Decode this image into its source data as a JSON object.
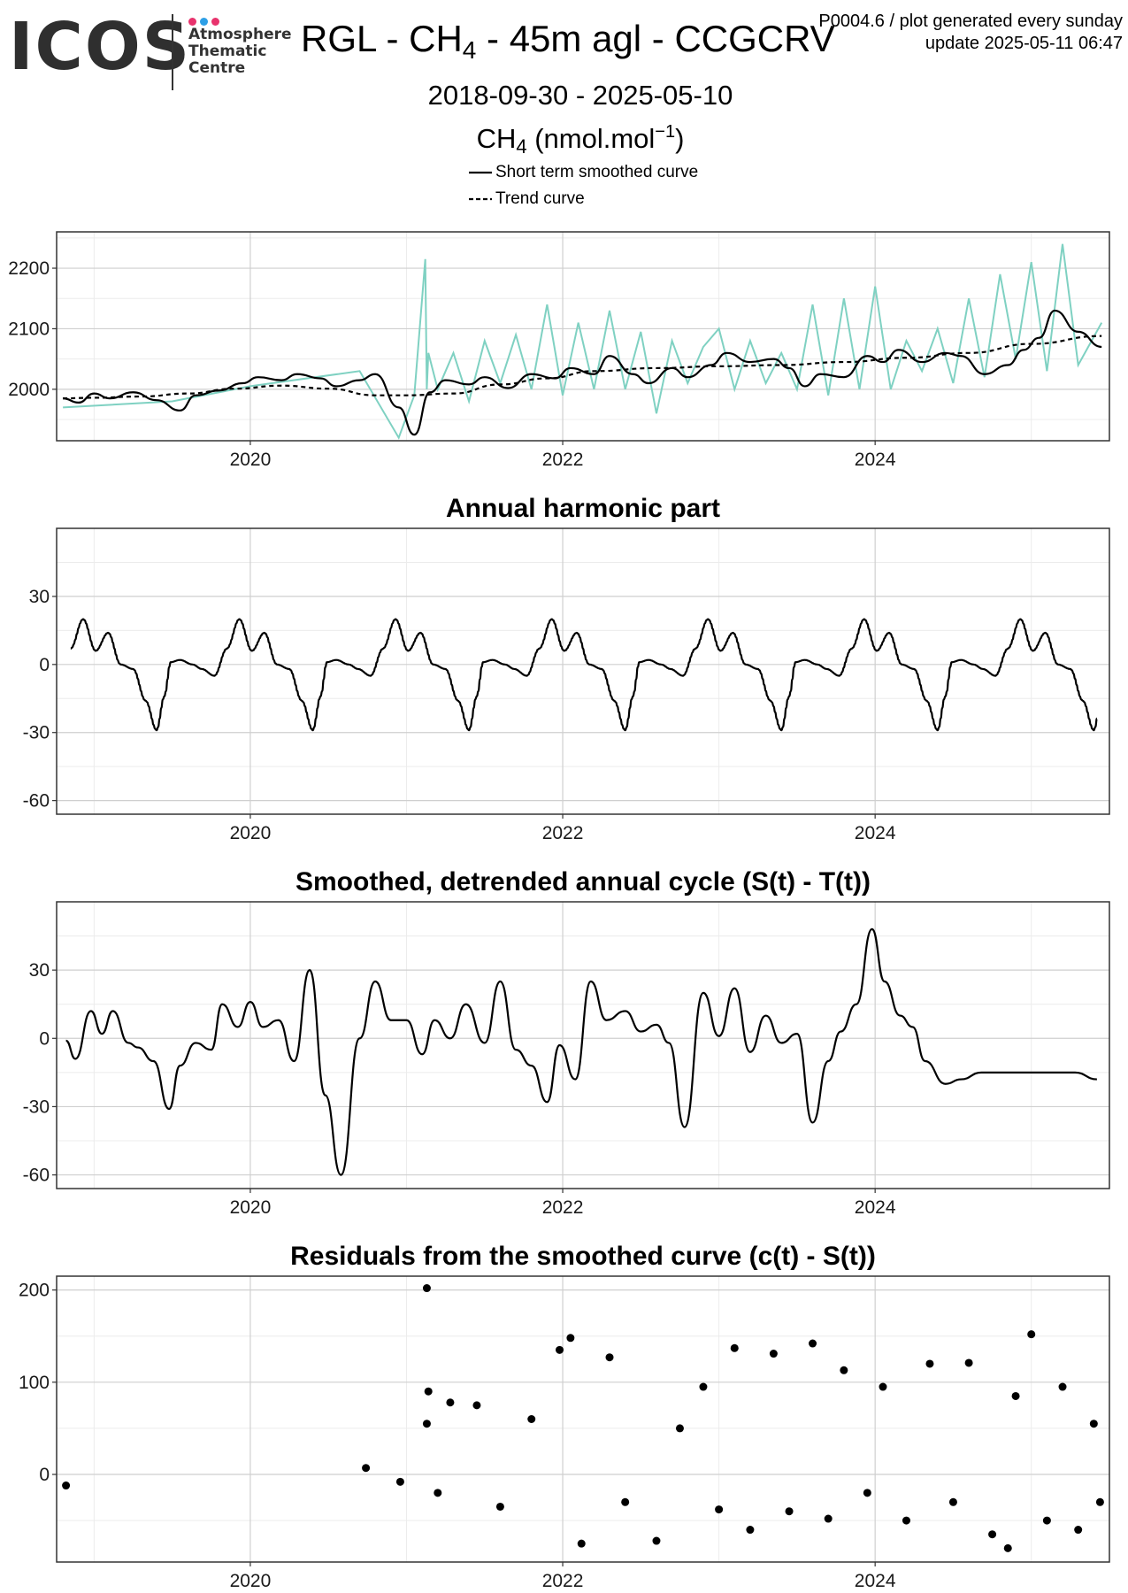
{
  "header": {
    "logo_text": "ICOS",
    "logo_sub": [
      "Atmosphere",
      "Thematic",
      "Centre"
    ],
    "logo_dot_colors": [
      "#e8336d",
      "#2e9fe6",
      "#e8336d"
    ],
    "title_pre": "RGL - CH",
    "title_sub": "4",
    "title_post": " - 45m agl - CCGCRV",
    "meta_line1": "P0004.6 / plot generated every sunday",
    "meta_line2": "update  2025-05-11 06:47",
    "date_range": "2018-09-30 - 2025-05-10",
    "unit_pre": "CH",
    "unit_sub": "4",
    "unit_mid": " (nmol.mol",
    "unit_sup": "−1",
    "unit_post": ")"
  },
  "legend": {
    "items": [
      {
        "label": "Short term smoothed curve",
        "style": "solid"
      },
      {
        "label": "Trend curve",
        "style": "dashed"
      }
    ]
  },
  "colors": {
    "observations": "#7fd1c2",
    "curve": "#000000",
    "grid_major": "#cfcfcf",
    "grid_minor": "#ececec",
    "frame": "#333333"
  },
  "chart_data": [
    {
      "id": "ch4",
      "type": "line",
      "title": "",
      "xlabel": "",
      "ylabel": "",
      "xlim": [
        2018.76,
        2025.5
      ],
      "ylim": [
        1915,
        2260
      ],
      "yticks": [
        2000,
        2100,
        2200
      ],
      "xticks": [
        2020,
        2022,
        2024
      ],
      "series": [
        {
          "name": "Short term smoothed curve",
          "style": "solid",
          "x": [
            2018.8,
            2018.9,
            2019.0,
            2019.1,
            2019.25,
            2019.4,
            2019.55,
            2019.65,
            2019.8,
            2019.95,
            2020.05,
            2020.2,
            2020.3,
            2020.45,
            2020.55,
            2020.7,
            2020.8,
            2020.95,
            2021.05,
            2021.15,
            2021.25,
            2021.4,
            2021.5,
            2021.65,
            2021.8,
            2021.95,
            2022.05,
            2022.2,
            2022.3,
            2022.45,
            2022.55,
            2022.7,
            2022.8,
            2022.95,
            2023.05,
            2023.2,
            2023.35,
            2023.45,
            2023.55,
            2023.65,
            2023.8,
            2023.95,
            2024.05,
            2024.15,
            2024.3,
            2024.45,
            2024.55,
            2024.7,
            2024.85,
            2024.95,
            2025.05,
            2025.15,
            2025.3,
            2025.45
          ],
          "y": [
            1985,
            1978,
            1993,
            1985,
            1995,
            1982,
            1965,
            1990,
            1998,
            2010,
            2020,
            2015,
            2025,
            2018,
            2005,
            2015,
            2025,
            1970,
            1925,
            1995,
            2015,
            2008,
            2020,
            2002,
            2025,
            2018,
            2035,
            2025,
            2055,
            2025,
            2010,
            2035,
            2020,
            2040,
            2060,
            2045,
            2050,
            2035,
            2005,
            2025,
            2020,
            2055,
            2045,
            2065,
            2045,
            2060,
            2055,
            2025,
            2040,
            2065,
            2085,
            2130,
            2095,
            2070
          ]
        },
        {
          "name": "Trend curve",
          "style": "dashed",
          "x": [
            2018.8,
            2019.0,
            2019.3,
            2019.6,
            2019.9,
            2020.2,
            2020.5,
            2020.8,
            2021.0,
            2021.3,
            2021.6,
            2021.9,
            2022.2,
            2022.6,
            2023.0,
            2023.4,
            2023.8,
            2024.2,
            2024.6,
            2025.0,
            2025.45
          ],
          "y": [
            1985,
            1986,
            1988,
            1993,
            2001,
            2006,
            2001,
            1990,
            1990,
            1993,
            2008,
            2018,
            2030,
            2035,
            2038,
            2040,
            2045,
            2052,
            2060,
            2075,
            2088
          ]
        },
        {
          "name": "",
          "style": "observations",
          "x": [
            2018.8,
            2019.5,
            2020.0,
            2020.7,
            2020.95,
            2021.05,
            2021.12,
            2021.13,
            2021.14,
            2021.2,
            2021.3,
            2021.4,
            2021.5,
            2021.6,
            2021.7,
            2021.8,
            2021.9,
            2022.0,
            2022.1,
            2022.2,
            2022.3,
            2022.4,
            2022.5,
            2022.6,
            2022.7,
            2022.8,
            2022.9,
            2023.0,
            2023.1,
            2023.2,
            2023.3,
            2023.4,
            2023.5,
            2023.6,
            2023.7,
            2023.8,
            2023.9,
            2024.0,
            2024.1,
            2024.2,
            2024.3,
            2024.4,
            2024.5,
            2024.6,
            2024.7,
            2024.8,
            2024.9,
            2025.0,
            2025.1,
            2025.2,
            2025.3,
            2025.45
          ],
          "y": [
            1970,
            1980,
            2005,
            2030,
            1920,
            1990,
            2215,
            2000,
            2060,
            2000,
            2060,
            1980,
            2080,
            2010,
            2090,
            2000,
            2140,
            1990,
            2110,
            2000,
            2130,
            2000,
            2095,
            1960,
            2080,
            2010,
            2070,
            2100,
            2000,
            2080,
            2010,
            2060,
            2000,
            2140,
            1990,
            2150,
            2000,
            2170,
            2000,
            2080,
            2030,
            2100,
            2010,
            2150,
            2020,
            2190,
            2050,
            2210,
            2030,
            2240,
            2040,
            2110
          ]
        }
      ]
    },
    {
      "id": "harmonic",
      "type": "line",
      "title": "Annual harmonic part",
      "xlabel": "",
      "ylabel": "",
      "xlim": [
        2018.76,
        2025.5
      ],
      "ylim": [
        -66,
        60
      ],
      "yticks": [
        -60,
        -30,
        0,
        30
      ],
      "xticks": [
        2020,
        2022,
        2024
      ],
      "series": [
        {
          "name": "",
          "style": "solid",
          "cycle_phase": [
            0.0,
            0.08,
            0.16,
            0.24,
            0.32,
            0.4,
            0.48,
            0.55,
            0.6,
            0.64,
            0.7,
            0.78,
            0.84,
            0.92,
            1.0
          ],
          "cycle_values": [
            7,
            20,
            6,
            14,
            0,
            -2,
            -16,
            -29,
            -14,
            1,
            2,
            0,
            -2,
            -5,
            7
          ],
          "x_start": 2018.85,
          "x_end": 2025.42,
          "values_note": "repeats every year"
        }
      ]
    },
    {
      "id": "detrended",
      "type": "line",
      "title": "Smoothed, detrended annual cycle (S(t) - T(t))",
      "xlabel": "",
      "ylabel": "",
      "xlim": [
        2018.76,
        2025.5
      ],
      "ylim": [
        -66,
        60
      ],
      "yticks": [
        -60,
        -30,
        0,
        30
      ],
      "xticks": [
        2020,
        2022,
        2024
      ],
      "series": [
        {
          "name": "",
          "style": "solid",
          "x": [
            2018.82,
            2018.88,
            2018.98,
            2019.05,
            2019.12,
            2019.22,
            2019.28,
            2019.38,
            2019.48,
            2019.55,
            2019.65,
            2019.75,
            2019.82,
            2019.92,
            2020.0,
            2020.08,
            2020.18,
            2020.28,
            2020.38,
            2020.48,
            2020.58,
            2020.7,
            2020.8,
            2020.9,
            2021.0,
            2021.1,
            2021.18,
            2021.28,
            2021.38,
            2021.5,
            2021.6,
            2021.7,
            2021.8,
            2021.9,
            2021.98,
            2022.08,
            2022.18,
            2022.28,
            2022.4,
            2022.5,
            2022.6,
            2022.68,
            2022.78,
            2022.9,
            2023.0,
            2023.1,
            2023.2,
            2023.3,
            2023.4,
            2023.5,
            2023.6,
            2023.7,
            2023.78,
            2023.88,
            2023.98,
            2024.06,
            2024.16,
            2024.24,
            2024.32,
            2024.45,
            2024.55,
            2024.68,
            2024.8,
            2024.9,
            2024.98,
            2025.08,
            2025.18,
            2025.28,
            2025.42
          ],
          "y": [
            -1,
            -9,
            12,
            2,
            12,
            -2,
            -4,
            -10,
            -31,
            -12,
            -2,
            -5,
            15,
            5,
            16,
            5,
            8,
            -10,
            30,
            -25,
            -60,
            0,
            25,
            8,
            8,
            -7,
            8,
            0,
            15,
            -2,
            25,
            -5,
            -12,
            -28,
            -3,
            -18,
            25,
            8,
            12,
            3,
            6,
            -2,
            -39,
            20,
            1,
            22,
            -6,
            10,
            -2,
            2,
            -37,
            -10,
            3,
            15,
            48,
            25,
            10,
            5,
            -10,
            -20,
            -18,
            -15,
            -15,
            -15,
            -15,
            -15,
            -15,
            -15,
            -18
          ]
        }
      ]
    },
    {
      "id": "residuals",
      "type": "scatter",
      "title": "Residuals from the smoothed curve (c(t) - S(t))",
      "xlabel": "",
      "ylabel": "",
      "xlim": [
        2018.76,
        2025.5
      ],
      "ylim": [
        -95,
        215
      ],
      "yticks": [
        0,
        100,
        200
      ],
      "xticks": [
        2020,
        2022,
        2024
      ],
      "series": [
        {
          "name": "",
          "style": "points",
          "x": [
            2018.82,
            2020.74,
            2020.96,
            2021.13,
            2021.14,
            2021.13,
            2021.2,
            2021.28,
            2021.45,
            2021.6,
            2021.8,
            2021.98,
            2022.05,
            2022.12,
            2022.3,
            2022.4,
            2022.6,
            2022.75,
            2022.9,
            2023.0,
            2023.1,
            2023.2,
            2023.35,
            2023.45,
            2023.6,
            2023.7,
            2023.8,
            2023.95,
            2024.05,
            2024.2,
            2024.35,
            2024.5,
            2024.6,
            2024.75,
            2024.85,
            2024.9,
            2025.0,
            2025.1,
            2025.2,
            2025.3,
            2025.4,
            2025.44
          ],
          "y": [
            -12,
            7,
            -8,
            202,
            90,
            55,
            -20,
            78,
            75,
            -35,
            60,
            135,
            148,
            -75,
            127,
            -30,
            -72,
            50,
            95,
            -38,
            137,
            -60,
            131,
            -40,
            142,
            -48,
            113,
            -20,
            95,
            -50,
            120,
            -30,
            121,
            -65,
            -80,
            85,
            152,
            -50,
            95,
            -60,
            55,
            -30
          ]
        }
      ]
    }
  ]
}
